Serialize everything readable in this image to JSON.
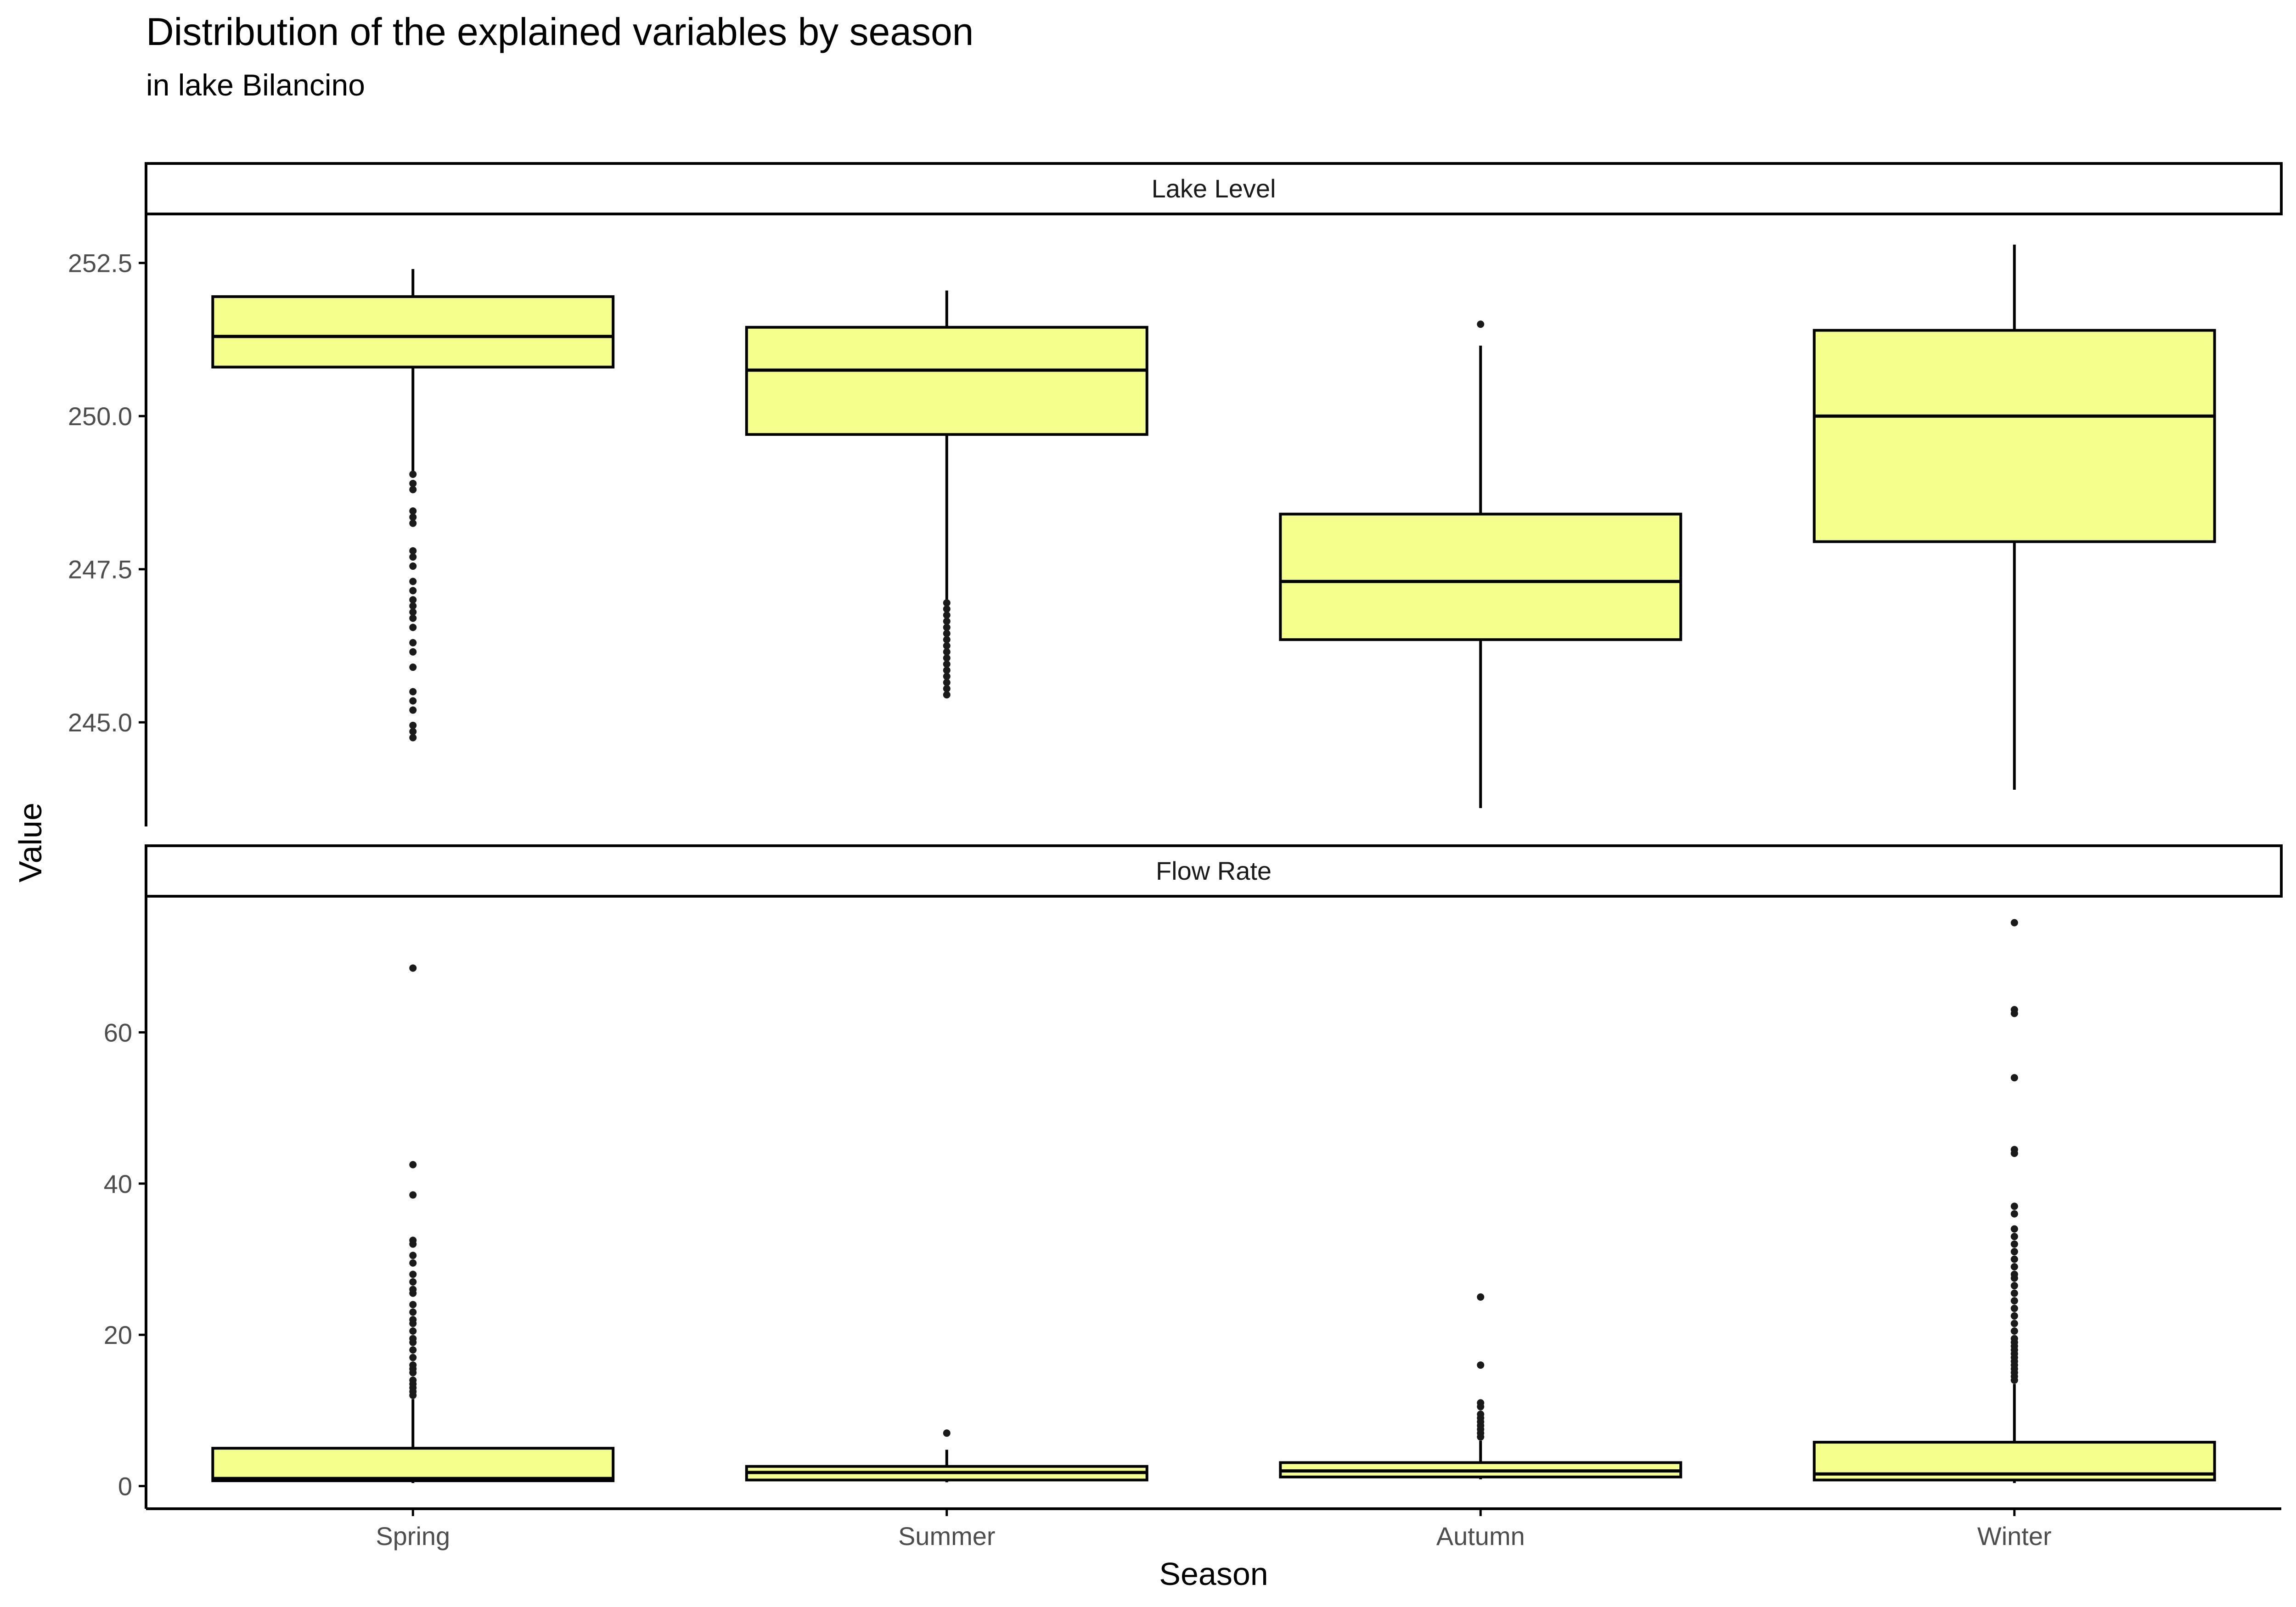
{
  "title": "Distribution of the explained variables by season",
  "subtitle": "in lake Bilancino",
  "xlabel": "Season",
  "ylabel": "Value",
  "colors": {
    "box_fill": "#f5ff8c",
    "box_stroke": "#000000",
    "outlier": "#1a1a1a",
    "axis": "#000000",
    "tick_text": "#4d4d4d"
  },
  "chart_data": [
    {
      "type": "boxplot",
      "panel": "Lake Level",
      "categories": [
        "Spring",
        "Summer",
        "Autumn",
        "Winter"
      ],
      "yticks": [
        245.0,
        247.5,
        250.0,
        252.5
      ],
      "ytick_labels": [
        "245.0",
        "247.5",
        "250.0",
        "252.5"
      ],
      "ylim": [
        243.3,
        253.3
      ],
      "boxes": [
        {
          "category": "Spring",
          "whisker_low": 249.0,
          "q1": 250.8,
          "median": 251.3,
          "q3": 251.95,
          "whisker_high": 252.4,
          "outliers": [
            249.05,
            248.9,
            248.8,
            248.45,
            248.35,
            248.25,
            247.8,
            247.7,
            247.55,
            247.3,
            247.15,
            247.0,
            246.9,
            246.8,
            246.7,
            246.55,
            246.3,
            246.15,
            245.9,
            245.5,
            245.35,
            245.2,
            244.95,
            244.85,
            244.75
          ]
        },
        {
          "category": "Summer",
          "whisker_low": 247.0,
          "q1": 249.7,
          "median": 250.75,
          "q3": 251.45,
          "whisker_high": 252.05,
          "outliers": [
            246.95,
            246.85,
            246.75,
            246.65,
            246.55,
            246.45,
            246.35,
            246.25,
            246.15,
            246.05,
            245.95,
            245.85,
            245.75,
            245.65,
            245.55,
            245.45
          ]
        },
        {
          "category": "Autumn",
          "whisker_low": 243.6,
          "q1": 246.35,
          "median": 247.3,
          "q3": 248.4,
          "whisker_high": 251.15,
          "outliers": [
            251.5
          ]
        },
        {
          "category": "Winter",
          "whisker_low": 243.9,
          "q1": 247.95,
          "median": 250.0,
          "q3": 251.4,
          "whisker_high": 252.8,
          "outliers": []
        }
      ]
    },
    {
      "type": "boxplot",
      "panel": "Flow Rate",
      "categories": [
        "Spring",
        "Summer",
        "Autumn",
        "Winter"
      ],
      "yticks": [
        0,
        20,
        40,
        60
      ],
      "ytick_labels": [
        "0",
        "20",
        "40",
        "60"
      ],
      "ylim": [
        -3,
        78
      ],
      "boxes": [
        {
          "category": "Spring",
          "whisker_low": 0.4,
          "q1": 0.7,
          "median": 1.0,
          "q3": 5.0,
          "whisker_high": 11.5,
          "outliers": [
            68.5,
            42.5,
            38.5,
            32.5,
            32.0,
            30.5,
            29.5,
            28.0,
            27.0,
            26.0,
            25.5,
            24.0,
            23.0,
            22.0,
            21.5,
            20.5,
            19.5,
            19.0,
            18.0,
            17.0,
            16.0,
            15.5,
            15.0,
            14.0,
            13.5,
            13.0,
            12.5,
            12.0
          ]
        },
        {
          "category": "Summer",
          "whisker_low": 0.5,
          "q1": 0.8,
          "median": 1.8,
          "q3": 2.6,
          "whisker_high": 4.8,
          "outliers": [
            7.0
          ]
        },
        {
          "category": "Autumn",
          "whisker_low": 0.9,
          "q1": 1.2,
          "median": 2.0,
          "q3": 3.1,
          "whisker_high": 6.0,
          "outliers": [
            25.0,
            16.0,
            11.0,
            10.5,
            9.5,
            9.0,
            8.5,
            8.0,
            7.5,
            7.0,
            6.5
          ]
        },
        {
          "category": "Winter",
          "whisker_low": 0.4,
          "q1": 0.8,
          "median": 1.6,
          "q3": 5.8,
          "whisker_high": 13.5,
          "outliers": [
            74.5,
            63.0,
            62.5,
            54.0,
            44.5,
            44.0,
            37.0,
            36.0,
            34.0,
            33.0,
            32.0,
            31.0,
            30.0,
            29.0,
            28.0,
            27.5,
            26.5,
            25.5,
            24.5,
            23.5,
            22.5,
            21.5,
            20.5,
            19.5,
            19.0,
            18.5,
            18.0,
            17.5,
            17.0,
            16.5,
            16.0,
            15.5,
            15.0,
            14.5,
            14.0
          ]
        }
      ]
    }
  ]
}
